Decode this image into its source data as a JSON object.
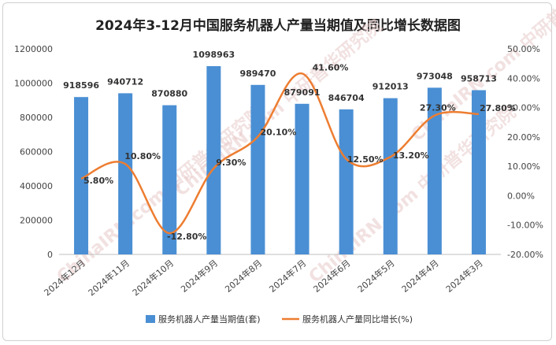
{
  "chart_data": {
    "type": "bar+line",
    "title": "2024年3-12月中国服务机器人产量当期值及同比增长数据图",
    "categories": [
      "2024年12月",
      "2024年11月",
      "2024年10月",
      "2024年9月",
      "2024年8月",
      "2024年7月",
      "2024年6月",
      "2024年5月",
      "2024年4月",
      "2024年3月"
    ],
    "series": [
      {
        "name": "服务机器人产量当期值(套)",
        "type": "bar",
        "axis": "left",
        "color": "#4a8fd4",
        "values": [
          918596,
          940712,
          870880,
          1098963,
          989470,
          879091,
          846704,
          912013,
          973048,
          958713
        ]
      },
      {
        "name": "服务机器人产量同比增长(%)",
        "type": "line",
        "axis": "right",
        "color": "#ed7d31",
        "values": [
          5.8,
          10.8,
          -12.8,
          9.3,
          20.1,
          41.6,
          12.5,
          13.2,
          27.3,
          27.8
        ],
        "labels": [
          "5.80%",
          "10.80%",
          "-12.80%",
          "9.30%",
          "20.10%",
          "41.60%",
          "12.50%",
          "13.20%",
          "27.30%",
          "27.80%"
        ]
      }
    ],
    "y_left": {
      "min": 0,
      "max": 1200000,
      "ticks": [
        "0",
        "200000",
        "400000",
        "600000",
        "800000",
        "1000000",
        "1200000"
      ]
    },
    "y_right": {
      "min": -20,
      "max": 50,
      "ticks": [
        "-20.00%",
        "-10.00%",
        "0.00%",
        "10.00%",
        "20.00%",
        "30.00%",
        "40.00%",
        "50.00%"
      ]
    },
    "legend_position": "bottom",
    "grid": false
  },
  "watermark": "ChinaIRN.com 中研普华研究院"
}
